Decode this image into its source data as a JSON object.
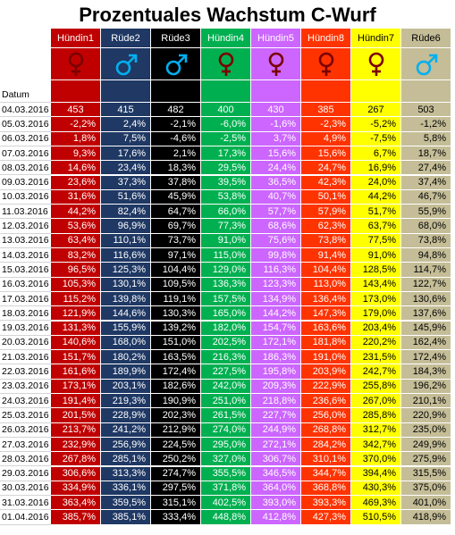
{
  "title": "Prozentuales Wachstum C-Wurf",
  "date_label": "Datum",
  "columns": [
    {
      "name": "Hündin1",
      "sex": "female",
      "icon": "female-icon",
      "bg": "#c00000",
      "fg": "#ffffff",
      "sym": "#7b0000"
    },
    {
      "name": "Rüde2",
      "sex": "male",
      "icon": "male-icon",
      "bg": "#1f3864",
      "fg": "#ffffff",
      "sym": "#00b0f0"
    },
    {
      "name": "Rüde3",
      "sex": "male",
      "icon": "male-icon",
      "bg": "#000000",
      "fg": "#ffffff",
      "sym": "#00b0f0"
    },
    {
      "name": "Hündin4",
      "sex": "female",
      "icon": "female-icon",
      "bg": "#00b050",
      "fg": "#ffffff",
      "sym": "#7b0000"
    },
    {
      "name": "Hündin5",
      "sex": "female",
      "icon": "female-icon",
      "bg": "#cc66ff",
      "fg": "#ffffff",
      "sym": "#7b0000"
    },
    {
      "name": "Hündin8",
      "sex": "female",
      "icon": "female-icon",
      "bg": "#ff3300",
      "fg": "#ffffff",
      "sym": "#7b0000"
    },
    {
      "name": "Hündin7",
      "sex": "female",
      "icon": "female-icon",
      "bg": "#ffff00",
      "fg": "#000000",
      "sym": "#7b0000"
    },
    {
      "name": "Rüde6",
      "sex": "male",
      "icon": "male-icon",
      "bg": "#c4bd97",
      "fg": "#000000",
      "sym": "#00b0f0"
    }
  ],
  "rows": [
    {
      "date": "04.03.2016",
      "values": [
        "453",
        "415",
        "482",
        "400",
        "430",
        "385",
        "267",
        "503"
      ]
    },
    {
      "date": "05.03.2016",
      "values": [
        "-2,2%",
        "2,4%",
        "-2,1%",
        "-6,0%",
        "-1,6%",
        "-2,3%",
        "-5,2%",
        "-1,2%"
      ]
    },
    {
      "date": "06.03.2016",
      "values": [
        "1,8%",
        "7,5%",
        "-4,6%",
        "-2,5%",
        "3,7%",
        "4,9%",
        "-7,5%",
        "5,8%"
      ]
    },
    {
      "date": "07.03.2016",
      "values": [
        "9,3%",
        "17,6%",
        "2,1%",
        "17,3%",
        "15,6%",
        "15,6%",
        "6,7%",
        "18,7%"
      ]
    },
    {
      "date": "08.03.2016",
      "values": [
        "14,6%",
        "23,4%",
        "18,3%",
        "29,5%",
        "24,4%",
        "24,7%",
        "16,9%",
        "27,4%"
      ]
    },
    {
      "date": "09.03.2016",
      "values": [
        "23,6%",
        "37,3%",
        "37,8%",
        "39,5%",
        "36,5%",
        "42,3%",
        "24,0%",
        "37,4%"
      ]
    },
    {
      "date": "10.03.2016",
      "values": [
        "31,6%",
        "51,6%",
        "45,9%",
        "53,8%",
        "40,7%",
        "50,1%",
        "44,2%",
        "46,7%"
      ]
    },
    {
      "date": "11.03.2016",
      "values": [
        "44,2%",
        "82,4%",
        "64,7%",
        "66,0%",
        "57,7%",
        "57,9%",
        "51,7%",
        "55,9%"
      ]
    },
    {
      "date": "12.03.2016",
      "values": [
        "53,6%",
        "96,9%",
        "69,7%",
        "77,3%",
        "68,6%",
        "62,3%",
        "63,7%",
        "68,0%"
      ]
    },
    {
      "date": "13.03.2016",
      "values": [
        "63,4%",
        "110,1%",
        "73,7%",
        "91,0%",
        "75,6%",
        "73,8%",
        "77,5%",
        "73,8%"
      ]
    },
    {
      "date": "14.03.2016",
      "values": [
        "83,2%",
        "116,6%",
        "97,1%",
        "115,0%",
        "99,8%",
        "91,4%",
        "91,0%",
        "94,8%"
      ]
    },
    {
      "date": "15.03.2016",
      "values": [
        "96,5%",
        "125,3%",
        "104,4%",
        "129,0%",
        "116,3%",
        "104,4%",
        "128,5%",
        "114,7%"
      ]
    },
    {
      "date": "16.03.2016",
      "values": [
        "105,3%",
        "130,1%",
        "109,5%",
        "136,3%",
        "123,3%",
        "113,0%",
        "143,4%",
        "122,7%"
      ]
    },
    {
      "date": "17.03.2016",
      "values": [
        "115,2%",
        "139,8%",
        "119,1%",
        "157,5%",
        "134,9%",
        "136,4%",
        "173,0%",
        "130,6%"
      ]
    },
    {
      "date": "18.03.2016",
      "values": [
        "121,9%",
        "144,6%",
        "130,3%",
        "165,0%",
        "144,2%",
        "147,3%",
        "179,0%",
        "137,6%"
      ]
    },
    {
      "date": "19.03.2016",
      "values": [
        "131,3%",
        "155,9%",
        "139,2%",
        "182,0%",
        "154,7%",
        "163,6%",
        "203,4%",
        "145,9%"
      ]
    },
    {
      "date": "20.03.2016",
      "values": [
        "140,6%",
        "168,0%",
        "151,0%",
        "202,5%",
        "172,1%",
        "181,8%",
        "220,2%",
        "162,4%"
      ]
    },
    {
      "date": "21.03.2016",
      "values": [
        "151,7%",
        "180,2%",
        "163,5%",
        "216,3%",
        "186,3%",
        "191,0%",
        "231,5%",
        "172,4%"
      ]
    },
    {
      "date": "22.03.2016",
      "values": [
        "161,6%",
        "189,9%",
        "172,4%",
        "227,5%",
        "195,8%",
        "203,9%",
        "242,7%",
        "184,3%"
      ]
    },
    {
      "date": "23.03.2016",
      "values": [
        "173,1%",
        "203,1%",
        "182,6%",
        "242,0%",
        "209,3%",
        "222,9%",
        "255,8%",
        "196,2%"
      ]
    },
    {
      "date": "24.03.2016",
      "values": [
        "191,4%",
        "219,3%",
        "190,9%",
        "251,0%",
        "218,8%",
        "236,6%",
        "267,0%",
        "210,1%"
      ]
    },
    {
      "date": "25.03.2016",
      "values": [
        "201,5%",
        "228,9%",
        "202,3%",
        "261,5%",
        "227,7%",
        "256,0%",
        "285,8%",
        "220,9%"
      ]
    },
    {
      "date": "26.03.2016",
      "values": [
        "213,7%",
        "241,2%",
        "212,9%",
        "274,0%",
        "244,9%",
        "268,8%",
        "312,7%",
        "235,0%"
      ]
    },
    {
      "date": "27.03.2016",
      "values": [
        "232,9%",
        "256,9%",
        "224,5%",
        "295,0%",
        "272,1%",
        "284,2%",
        "342,7%",
        "249,9%"
      ]
    },
    {
      "date": "28.03.2016",
      "values": [
        "267,8%",
        "285,1%",
        "250,2%",
        "327,0%",
        "306,7%",
        "310,1%",
        "370,0%",
        "275,9%"
      ]
    },
    {
      "date": "29.03.2016",
      "values": [
        "306,6%",
        "313,3%",
        "274,7%",
        "355,5%",
        "346,5%",
        "344,7%",
        "394,4%",
        "315,5%"
      ]
    },
    {
      "date": "30.03.2016",
      "values": [
        "334,9%",
        "336,1%",
        "297,5%",
        "371,8%",
        "364,0%",
        "368,8%",
        "430,3%",
        "375,0%"
      ]
    },
    {
      "date": "31.03.2016",
      "values": [
        "363,4%",
        "359,5%",
        "315,1%",
        "402,5%",
        "393,0%",
        "393,3%",
        "469,3%",
        "401,0%"
      ]
    },
    {
      "date": "01.04.2016",
      "values": [
        "385,7%",
        "385,1%",
        "333,4%",
        "448,8%",
        "412,8%",
        "427,3%",
        "510,5%",
        "418,9%"
      ]
    }
  ]
}
